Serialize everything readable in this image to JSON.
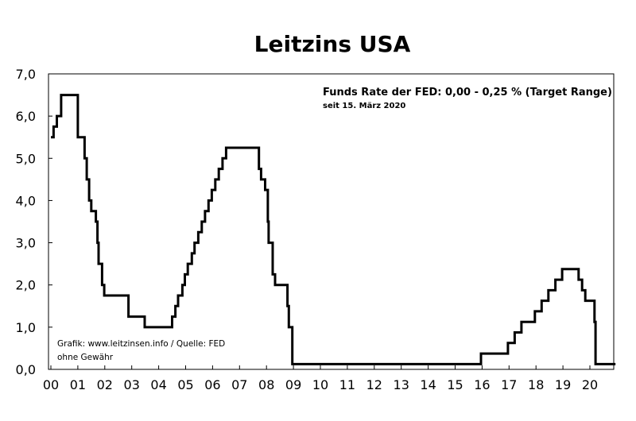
{
  "chart_data": {
    "type": "line",
    "step": true,
    "title": "Leitzins USA",
    "xlabel": "",
    "ylabel": "",
    "xlim": [
      2000,
      2020.95
    ],
    "ylim": [
      0,
      7
    ],
    "x_tick_labels": [
      "00",
      "01",
      "02",
      "03",
      "04",
      "05",
      "06",
      "07",
      "08",
      "09",
      "10",
      "11",
      "12",
      "13",
      "14",
      "15",
      "16",
      "17",
      "18",
      "19",
      "20"
    ],
    "y_tick_labels": [
      "0,0",
      "1,0",
      "2,0",
      "3,0",
      "4,0",
      "5,0",
      "6,0",
      "7,0"
    ],
    "annotation": {
      "main": "Funds Rate der FED: 0,00 - 0,25 % (Target Range)",
      "sub": "seit 15. März 2020"
    },
    "source_lines": [
      "Grafik: www.leitzinsen.info / Quelle: FED",
      "ohne Gewähr"
    ],
    "series": [
      {
        "name": "Funds Rate der FED",
        "color": "#000000",
        "points": [
          [
            2000.0,
            5.5
          ],
          [
            2000.1,
            5.75
          ],
          [
            2000.22,
            6.0
          ],
          [
            2000.38,
            6.5
          ],
          [
            2001.0,
            5.5
          ],
          [
            2001.25,
            5.0
          ],
          [
            2001.33,
            4.5
          ],
          [
            2001.42,
            4.0
          ],
          [
            2001.5,
            3.75
          ],
          [
            2001.67,
            3.5
          ],
          [
            2001.73,
            3.0
          ],
          [
            2001.77,
            2.5
          ],
          [
            2001.9,
            2.0
          ],
          [
            2001.98,
            1.75
          ],
          [
            2002.88,
            1.25
          ],
          [
            2003.48,
            1.0
          ],
          [
            2004.5,
            1.25
          ],
          [
            2004.62,
            1.5
          ],
          [
            2004.72,
            1.75
          ],
          [
            2004.88,
            2.0
          ],
          [
            2004.97,
            2.25
          ],
          [
            2005.08,
            2.5
          ],
          [
            2005.23,
            2.75
          ],
          [
            2005.33,
            3.0
          ],
          [
            2005.47,
            3.25
          ],
          [
            2005.6,
            3.5
          ],
          [
            2005.72,
            3.75
          ],
          [
            2005.85,
            4.0
          ],
          [
            2005.97,
            4.25
          ],
          [
            2006.1,
            4.5
          ],
          [
            2006.23,
            4.75
          ],
          [
            2006.37,
            5.0
          ],
          [
            2006.5,
            5.25
          ],
          [
            2007.72,
            4.75
          ],
          [
            2007.8,
            4.5
          ],
          [
            2007.95,
            4.25
          ],
          [
            2008.05,
            3.5
          ],
          [
            2008.08,
            3.0
          ],
          [
            2008.23,
            2.25
          ],
          [
            2008.32,
            2.0
          ],
          [
            2008.78,
            1.5
          ],
          [
            2008.83,
            1.0
          ],
          [
            2008.96,
            0.125
          ],
          [
            2015.96,
            0.375
          ],
          [
            2016.96,
            0.625
          ],
          [
            2017.21,
            0.875
          ],
          [
            2017.46,
            1.125
          ],
          [
            2017.96,
            1.375
          ],
          [
            2018.21,
            1.625
          ],
          [
            2018.46,
            1.875
          ],
          [
            2018.72,
            2.125
          ],
          [
            2018.97,
            2.375
          ],
          [
            2019.58,
            2.125
          ],
          [
            2019.71,
            1.875
          ],
          [
            2019.83,
            1.625
          ],
          [
            2020.17,
            1.125
          ],
          [
            2020.21,
            0.125
          ],
          [
            2020.95,
            0.125
          ]
        ]
      }
    ]
  }
}
